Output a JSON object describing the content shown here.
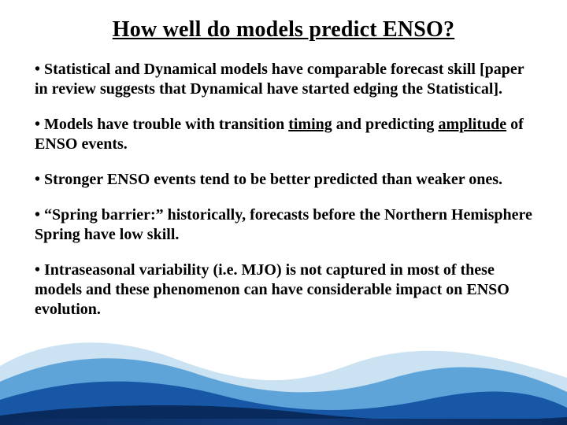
{
  "slide": {
    "title": "How well do models predict ENSO?",
    "bullets": [
      {
        "lead": "•  ",
        "parts": [
          {
            "t": "Statistical and Dynamical models have comparable forecast skill [paper in review suggests that Dynamical have started edging the Statistical].",
            "u": false
          }
        ]
      },
      {
        "lead": "•  ",
        "parts": [
          {
            "t": "Models have trouble with transition ",
            "u": false
          },
          {
            "t": "timing",
            "u": true
          },
          {
            "t": " and predicting ",
            "u": false
          },
          {
            "t": "amplitude",
            "u": true
          },
          {
            "t": " of ENSO events.",
            "u": false
          }
        ]
      },
      {
        "lead": "• ",
        "parts": [
          {
            "t": "Stronger ENSO events tend to be better predicted than weaker ones.",
            "u": false
          }
        ]
      },
      {
        "lead": "• ",
        "parts": [
          {
            "t": "“Spring barrier:” historically, forecasts before the Northern Hemisphere Spring have low skill.",
            "u": false
          }
        ]
      },
      {
        "lead": "• ",
        "parts": [
          {
            "t": "Intraseasonal variability (i.e. MJO) is not captured in most of these models and these phenomenon can have considerable impact on ENSO evolution.",
            "u": false
          }
        ]
      }
    ]
  },
  "style": {
    "background_color": "#ffffff",
    "text_color": "#000000",
    "title_fontsize": 28,
    "body_fontsize": 20,
    "wave_colors": {
      "back": "#9fcbe8",
      "mid": "#3b8fcf",
      "front": "#0f4fa0",
      "deep": "#082a5c"
    },
    "footer_bar_color": "#0a2a5e"
  }
}
